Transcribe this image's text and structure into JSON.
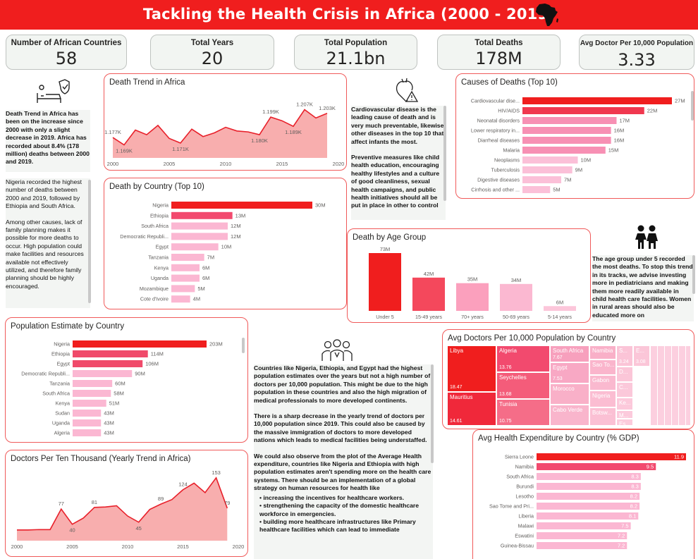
{
  "header": {
    "title": "Tackling the Health Crisis in Africa (2000 - 2019)",
    "africa_icon": "africa-map-icon"
  },
  "kpis": [
    {
      "label": "Number of African Countries",
      "value": "58"
    },
    {
      "label": "Total Years",
      "value": "20"
    },
    {
      "label": "Total Population",
      "value": "21.1bn"
    },
    {
      "label": "Total Deaths",
      "value": "178M"
    },
    {
      "label": "Avg Doctor Per 10,000 Population",
      "value": "3.33"
    }
  ],
  "colors": {
    "accent": "#f01e1e",
    "bar_strong": "#f0383c",
    "bar_mid": "#f56d8c",
    "bar_light": "#fbb7d2",
    "area": "#f7a0a0",
    "line": "#e8202a"
  },
  "notes": {
    "trend": [
      "Death Trend in Africa has been on the  increase since 2000 with only a slight decrease in 2019.  Africa has recorded about 8.4% (178 million) deaths between 2000 and 2019."
    ],
    "country": [
      "Nigeria recorded the highest number of deaths between 2000 and 2019, followed by Ethiopia and South Africa.",
      "Among other causes, lack of family planning makes it possible for more deaths to occur. High population could make facilities and resources available not effectively utilized, and therefore family planning should be highly encouraged."
    ],
    "causes": [
      "Cardiovascular disease is the leading cause of death and is very much preventable, likewise other diseases in the top 10 that affect infants the most.",
      "Preventive measures like child health education, encouraging healthy lifestyles and a culture of good cleanliness, sexual health campaigns, and public health initiatives should all be put in place in other to control"
    ],
    "age": [
      "The age group under 5 recorded the most deaths. To stop this trend in its tracks, we advise investing more in pediatricians and making them more readily available in child health care facilities. Women in rural areas should also be educated more on"
    ],
    "doctors_p1": "Countries like Nigeria, Ethiopia, and Egypt had the highest population estimates over the years but not a high number of doctors per 10,000 population. This might be due to the high population in these countries and also the high migration of medical professionals to more developed continents.",
    "doctors_p2": "There is a sharp decrease in the yearly trend of doctors per 10,000 population since 2019. This could also be caused by the massive immigration of doctors to more developed nations which leads to medical facilities being understaffed.",
    "doctors_p3": "We could also observe from the plot of the Average Health expenditure, countries like Nigeria and Ethiopia with high population estimates aren't spending more on the health care systems. There should be an implementation of a global strategy on human resources for health like",
    "doctors_bullets": [
      "increasing the incentives for healthcare workers.",
      "strengthening the capacity of the domestic healthcare workforce in emergencies.",
      "building more healthcare infrastructures like Primary healthcare facilities which can lead to immediate"
    ]
  },
  "chart_data": [
    {
      "id": "death_trend",
      "type": "area",
      "title": "Death Trend in Africa",
      "x": [
        2000,
        2001,
        2002,
        2003,
        2004,
        2005,
        2006,
        2007,
        2008,
        2009,
        2010,
        2011,
        2012,
        2013,
        2014,
        2015,
        2016,
        2017,
        2018,
        2019
      ],
      "values": [
        1.177,
        1.169,
        1.185,
        1.18,
        1.19,
        1.176,
        1.171,
        1.186,
        1.178,
        1.182,
        1.188,
        1.184,
        1.183,
        1.18,
        1.199,
        1.195,
        1.189,
        1.207,
        1.198,
        1.203
      ],
      "labels": {
        "0": "1.177K",
        "1": "1.169K",
        "6": "1.171K",
        "13": "1.180K",
        "14": "1.199K",
        "16": "1.189K",
        "17": "1.207K",
        "19": "1.203K"
      },
      "xticks": [
        2000,
        2005,
        2010,
        2015,
        2020
      ],
      "ylim": [
        1.155,
        1.215
      ]
    },
    {
      "id": "death_by_country",
      "type": "bar",
      "title": "Death by Country (Top 10)",
      "categories": [
        "Nigeria",
        "Ethiopia",
        "South Africa",
        "Democratic Republi...",
        "Egypt",
        "Tanzania",
        "Kenya",
        "Uganda",
        "Mozambique",
        "Cote d'Ivoire"
      ],
      "values": [
        30,
        13,
        12,
        12,
        10,
        7,
        6,
        6,
        5,
        4
      ],
      "data_labels": [
        "30M",
        "13M",
        "12M",
        "12M",
        "10M",
        "7M",
        "6M",
        "6M",
        "5M",
        "4M"
      ]
    },
    {
      "id": "causes",
      "type": "bar",
      "title": "Causes of Deaths (Top 10)",
      "categories": [
        "Cardiovascular dise...",
        "HIV/AIDS",
        "Neonatal disorders",
        "Lower respiratory in...",
        "Diarrheal diseases",
        "Malaria",
        "Neoplasms",
        "Tuberculosis",
        "Digestive diseases",
        "Cirrhosis and other ..."
      ],
      "values": [
        27,
        22,
        17,
        16,
        16,
        15,
        10,
        9,
        7,
        5
      ],
      "data_labels": [
        "27M",
        "22M",
        "17M",
        "16M",
        "16M",
        "15M",
        "10M",
        "9M",
        "7M",
        "5M"
      ]
    },
    {
      "id": "age_group",
      "type": "bar",
      "title": "Death by Age Group",
      "categories": [
        "Under 5",
        "15-49 years",
        "70+ years",
        "50-69 years",
        "5-14 years"
      ],
      "values": [
        73,
        42,
        35,
        34,
        6
      ],
      "data_labels": [
        "73M",
        "42M",
        "35M",
        "34M",
        "6M"
      ]
    },
    {
      "id": "population",
      "type": "bar",
      "title": "Population Estimate by Country",
      "categories": [
        "Nigeria",
        "Ethiopia",
        "Egypt",
        "Democratic Republi...",
        "Tanzania",
        "South Africa",
        "Kenya",
        "Sudan",
        "Uganda",
        "Algeria"
      ],
      "values": [
        203,
        114,
        106,
        90,
        60,
        58,
        51,
        43,
        43,
        43
      ],
      "data_labels": [
        "203M",
        "114M",
        "106M",
        "90M",
        "60M",
        "58M",
        "51M",
        "43M",
        "43M",
        "43M"
      ]
    },
    {
      "id": "doctors_trend",
      "type": "area",
      "title": "Doctors Per Ten Thousand (Yearly Trend in Africa)",
      "x": [
        2000,
        2001,
        2002,
        2003,
        2004,
        2005,
        2006,
        2007,
        2008,
        2009,
        2010,
        2011,
        2012,
        2013,
        2014,
        2015,
        2016,
        2017,
        2018,
        2019
      ],
      "values": [
        26,
        26,
        27,
        27,
        77,
        40,
        55,
        81,
        82,
        85,
        60,
        45,
        76,
        89,
        100,
        124,
        140,
        117,
        153,
        79
      ],
      "labels": {
        "4": "77",
        "5": "40",
        "7": "81",
        "11": "45",
        "13": "89",
        "15": "124",
        "18": "153",
        "19": "79"
      },
      "xticks": [
        2000,
        2005,
        2010,
        2015,
        2020
      ],
      "ylim": [
        0,
        175
      ]
    },
    {
      "id": "avg_doctors",
      "type": "treemap",
      "title": "Avg Doctors Per 10,000 Population by Country",
      "tiles": [
        {
          "name": "Libya",
          "value": "18.47"
        },
        {
          "name": "Mauritius",
          "value": "14.61"
        },
        {
          "name": "Algeria",
          "value": "13.76"
        },
        {
          "name": "Seychelles",
          "value": "13.68"
        },
        {
          "name": "Tunisia",
          "value": "10.75"
        },
        {
          "name": "South Africa",
          "value": "7.67"
        },
        {
          "name": "Egypt",
          "value": "7.53"
        },
        {
          "name": "Morocco",
          "value": ""
        },
        {
          "name": "Cabo Verde",
          "value": ""
        },
        {
          "name": "Namibia",
          "value": ""
        },
        {
          "name": "Sao To...",
          "value": ""
        },
        {
          "name": "Gabon",
          "value": ""
        },
        {
          "name": "Nigeria",
          "value": ""
        },
        {
          "name": "Botsw...",
          "value": ""
        },
        {
          "name": "S...",
          "value": "3.24"
        },
        {
          "name": "E...",
          "value": "3.08"
        },
        {
          "name": "D...",
          "value": ""
        },
        {
          "name": "C...",
          "value": ""
        },
        {
          "name": "Ke...",
          "value": ""
        },
        {
          "name": "M...",
          "value": ""
        },
        {
          "name": "Es...",
          "value": ""
        }
      ]
    },
    {
      "id": "health_exp",
      "type": "bar",
      "title": "Avg Health Expenditure by Country (% GDP)",
      "categories": [
        "Sierra Leone",
        "Namibia",
        "South Africa",
        "Burundi",
        "Lesotho",
        "Sao Tome and Pri...",
        "Liberia",
        "Malawi",
        "Eswatini",
        "Guinea-Bissau"
      ],
      "values": [
        11.9,
        9.5,
        8.3,
        8.3,
        8.2,
        8.2,
        8.1,
        7.5,
        7.2,
        7.2
      ],
      "data_labels": [
        "11.9",
        "9.5",
        "8.3",
        "8.3",
        "8.2",
        "8.2",
        "8.1",
        "7.5",
        "7.2",
        "7.2"
      ]
    }
  ]
}
